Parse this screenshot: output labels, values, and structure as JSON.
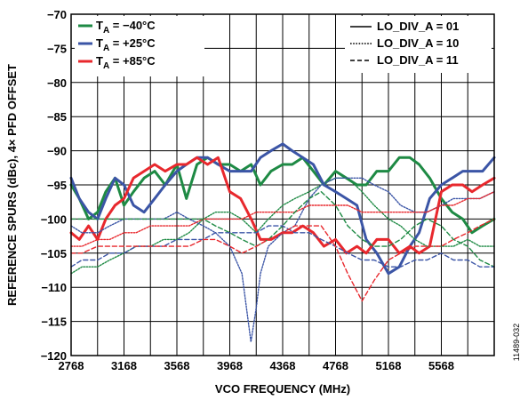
{
  "figure_id": "11489-032",
  "chart_data": {
    "type": "line",
    "xlabel": "VCO FREQUENCY (MHz)",
    "ylabel": "REFERENCE SPURS (dBc), 4× PFD OFFSET",
    "xlim": [
      2768,
      5968
    ],
    "ylim": [
      -120,
      -70
    ],
    "xticks": [
      2768,
      3168,
      3568,
      3968,
      4368,
      4768,
      5168,
      5568
    ],
    "yticks": [
      -120,
      -115,
      -110,
      -105,
      -100,
      -95,
      -90,
      -85,
      -80,
      -75,
      -70
    ],
    "grid": true,
    "temperature_legend": {
      "placement": "top-left",
      "entries": [
        {
          "prefix": "T",
          "sub": "A",
          "text": " = −40°C",
          "color": "#1e8a44"
        },
        {
          "prefix": "T",
          "sub": "A",
          "text": " = +25°C",
          "color": "#3b55a6"
        },
        {
          "prefix": "T",
          "sub": "A",
          "text": " = +85°C",
          "color": "#e8282d"
        }
      ]
    },
    "style_legend": {
      "placement": "top-right",
      "entries": [
        {
          "label": "LO_DIV_A = 01",
          "dash": "solid"
        },
        {
          "label": "LO_DIV_A = 10",
          "dash": "dotted"
        },
        {
          "label": "LO_DIV_A = 11",
          "dash": "dashed"
        }
      ]
    },
    "series": [
      {
        "temp": "−40°C",
        "lo_div_a": "01",
        "color": "#1e8a44",
        "dash": "solid",
        "width": 3,
        "x": [
          2768,
          2830,
          2900,
          2968,
          3030,
          3100,
          3168,
          3240,
          3320,
          3400,
          3480,
          3568,
          3640,
          3720,
          3800,
          3880,
          3968,
          4050,
          4130,
          4200,
          4280,
          4368,
          4440,
          4520,
          4600,
          4680,
          4768,
          4850,
          4930,
          5000,
          5080,
          5168,
          5250,
          5330,
          5400,
          5480,
          5568,
          5650,
          5730,
          5800,
          5880,
          5968
        ],
        "y": [
          -95,
          -97,
          -100,
          -99,
          -96,
          -94,
          -98,
          -96,
          -94,
          -93,
          -95,
          -92,
          -97,
          -92,
          -91,
          -92,
          -92,
          -93,
          -92,
          -95,
          -93,
          -92,
          -92,
          -91,
          -93,
          -95,
          -93,
          -94,
          -95,
          -95,
          -93,
          -93,
          -91,
          -91,
          -92,
          -94,
          -97,
          -99,
          -100,
          -102,
          -101,
          -100
        ]
      },
      {
        "temp": "+25°C",
        "lo_div_a": "01",
        "color": "#3b55a6",
        "dash": "solid",
        "width": 3,
        "x": [
          2768,
          2830,
          2900,
          2968,
          3030,
          3100,
          3168,
          3240,
          3320,
          3400,
          3480,
          3568,
          3640,
          3720,
          3800,
          3880,
          3968,
          4050,
          4130,
          4200,
          4280,
          4368,
          4440,
          4520,
          4600,
          4680,
          4768,
          4850,
          4930,
          5000,
          5080,
          5168,
          5250,
          5330,
          5400,
          5480,
          5568,
          5650,
          5730,
          5800,
          5880,
          5968
        ],
        "y": [
          -94,
          -97,
          -99,
          -100,
          -97,
          -94,
          -95,
          -98,
          -99,
          -97,
          -95,
          -93,
          -92,
          -91,
          -91,
          -92,
          -93,
          -93,
          -93,
          -91,
          -90,
          -89,
          -90,
          -91,
          -92,
          -95,
          -96,
          -97,
          -98,
          -103,
          -105,
          -108,
          -107,
          -104,
          -102,
          -97,
          -95,
          -94,
          -93,
          -93,
          -93,
          -91
        ]
      },
      {
        "temp": "+85°C",
        "lo_div_a": "01",
        "color": "#e8282d",
        "dash": "solid",
        "width": 3,
        "x": [
          2768,
          2830,
          2900,
          2968,
          3030,
          3100,
          3168,
          3240,
          3320,
          3400,
          3480,
          3568,
          3640,
          3720,
          3800,
          3880,
          3968,
          4050,
          4130,
          4200,
          4280,
          4368,
          4440,
          4520,
          4600,
          4680,
          4768,
          4850,
          4930,
          5000,
          5080,
          5168,
          5250,
          5330,
          5400,
          5480,
          5568,
          5650,
          5730,
          5800,
          5880,
          5968
        ],
        "y": [
          -102,
          -103,
          -101,
          -103,
          -100,
          -98,
          -97,
          -94,
          -93,
          -92,
          -93,
          -92,
          -92,
          -91,
          -92,
          -91,
          -96,
          -97,
          -100,
          -103,
          -103,
          -102,
          -102,
          -101,
          -102,
          -104,
          -103,
          -105,
          -104,
          -105,
          -103,
          -103,
          -105,
          -104,
          -105,
          -104,
          -96,
          -95,
          -95,
          -96,
          -95,
          -94
        ]
      },
      {
        "temp": "−40°C",
        "lo_div_a": "10",
        "color": "#1e8a44",
        "dash": "dotted",
        "width": 1.4,
        "x": [
          2768,
          2850,
          2968,
          3060,
          3168,
          3260,
          3368,
          3468,
          3568,
          3660,
          3768,
          3860,
          3968,
          4060,
          4168,
          4260,
          4368,
          4460,
          4568,
          4660,
          4768,
          4860,
          4968,
          5060,
          5168,
          5260,
          5368,
          5460,
          5568,
          5660,
          5768,
          5860,
          5968
        ],
        "y": [
          -108,
          -107,
          -107,
          -106,
          -105,
          -104,
          -104,
          -103,
          -103,
          -102,
          -100,
          -99,
          -99,
          -100,
          -102,
          -100,
          -98,
          -97,
          -96,
          -95,
          -94,
          -94,
          -96,
          -98,
          -100,
          -101,
          -103,
          -104,
          -104,
          -104,
          -103,
          -104,
          -104
        ]
      },
      {
        "temp": "+25°C",
        "lo_div_a": "10",
        "color": "#3b55a6",
        "dash": "dotted",
        "width": 1.4,
        "x": [
          2768,
          2850,
          2968,
          3060,
          3168,
          3260,
          3368,
          3468,
          3568,
          3660,
          3768,
          3860,
          3968,
          4060,
          4128,
          4168,
          4200,
          4260,
          4368,
          4460,
          4568,
          4660,
          4768,
          4860,
          4968,
          5060,
          5168,
          5260,
          5368,
          5460,
          5568,
          5660,
          5768,
          5860,
          5968
        ],
        "y": [
          -101,
          -102,
          -102,
          -101,
          -100,
          -100,
          -100,
          -100,
          -99,
          -100,
          -101,
          -102,
          -104,
          -108,
          -118,
          -113,
          -108,
          -104,
          -102,
          -101,
          -97,
          -95,
          -94,
          -94,
          -94,
          -95,
          -96,
          -98,
          -99,
          -99,
          -98,
          -97,
          -97,
          -97,
          -96
        ]
      },
      {
        "temp": "+85°C",
        "lo_div_a": "10",
        "color": "#e8282d",
        "dash": "dotted",
        "width": 1.4,
        "x": [
          2768,
          2850,
          2968,
          3060,
          3168,
          3260,
          3368,
          3468,
          3568,
          3660,
          3768,
          3860,
          3968,
          4060,
          4168,
          4260,
          4368,
          4460,
          4568,
          4660,
          4768,
          4860,
          4968,
          5060,
          5168,
          5260,
          5368,
          5460,
          5568,
          5660,
          5768,
          5860,
          5968
        ],
        "y": [
          -104,
          -104,
          -103,
          -103,
          -102,
          -102,
          -101,
          -101,
          -101,
          -101,
          -100,
          -100,
          -100,
          -100,
          -99,
          -99,
          -99,
          -99,
          -98,
          -98,
          -98,
          -98,
          -99,
          -99,
          -99,
          -99,
          -99,
          -99,
          -98,
          -98,
          -97,
          -97,
          -96
        ]
      },
      {
        "temp": "−40°C",
        "lo_div_a": "11",
        "color": "#1e8a44",
        "dash": "dashed",
        "width": 1.4,
        "x": [
          2768,
          2850,
          2968,
          3060,
          3168,
          3260,
          3368,
          3468,
          3568,
          3660,
          3768,
          3860,
          3968,
          4060,
          4168,
          4260,
          4368,
          4460,
          4568,
          4660,
          4768,
          4860,
          4968,
          5060,
          5168,
          5260,
          5368,
          5460,
          5568,
          5660,
          5768,
          5860,
          5968
        ],
        "y": [
          -100,
          -100,
          -100,
          -100,
          -100,
          -100,
          -100,
          -100,
          -100,
          -100,
          -100,
          -101,
          -102,
          -103,
          -104,
          -103,
          -101,
          -99,
          -97,
          -96,
          -98,
          -101,
          -103,
          -104,
          -104,
          -103,
          -101,
          -100,
          -101,
          -103,
          -104,
          -106,
          -107
        ]
      },
      {
        "temp": "+25°C",
        "lo_div_a": "11",
        "color": "#3b55a6",
        "dash": "dashed",
        "width": 1.4,
        "x": [
          2768,
          2850,
          2968,
          3060,
          3168,
          3260,
          3368,
          3468,
          3568,
          3660,
          3768,
          3860,
          3968,
          4060,
          4168,
          4260,
          4368,
          4460,
          4568,
          4660,
          4768,
          4860,
          4968,
          5060,
          5168,
          5260,
          5368,
          5460,
          5568,
          5660,
          5768,
          5860,
          5968
        ],
        "y": [
          -107,
          -106,
          -106,
          -105,
          -105,
          -104,
          -104,
          -104,
          -103,
          -103,
          -103,
          -102,
          -102,
          -102,
          -102,
          -101,
          -101,
          -102,
          -102,
          -103,
          -104,
          -105,
          -106,
          -106,
          -107,
          -107,
          -106,
          -106,
          -105,
          -106,
          -106,
          -107,
          -107
        ]
      },
      {
        "temp": "+85°C",
        "lo_div_a": "11",
        "color": "#e8282d",
        "dash": "dashed",
        "width": 1.4,
        "x": [
          2768,
          2850,
          2968,
          3060,
          3168,
          3260,
          3368,
          3468,
          3568,
          3660,
          3768,
          3860,
          3968,
          4060,
          4168,
          4260,
          4368,
          4460,
          4568,
          4660,
          4768,
          4860,
          4968,
          5060,
          5168,
          5260,
          5368,
          5460,
          5568,
          5660,
          5768,
          5860,
          5968
        ],
        "y": [
          -105,
          -105,
          -104,
          -104,
          -104,
          -104,
          -104,
          -104,
          -104,
          -104,
          -103,
          -103,
          -104,
          -105,
          -104,
          -103,
          -102,
          -101,
          -101,
          -101,
          -104,
          -108,
          -112,
          -109,
          -106,
          -105,
          -104,
          -104,
          -104,
          -103,
          -102,
          -101,
          -100
        ]
      }
    ]
  }
}
